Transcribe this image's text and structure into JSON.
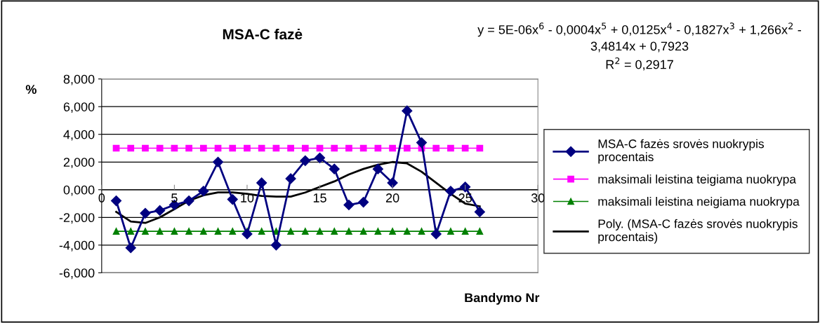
{
  "chart_data": {
    "type": "line",
    "title": "MSA-C fazė",
    "xlabel": "Bandymo Nr",
    "ylabel": "%",
    "annotations": [
      "y = 5E-06x$^{6}$ - 0,0004x$^{5}$ + 0,0125x$^{4}$ - 0,1827x$^{3}$ + 1,266x$^{2}$ -\n3,4814x + 0,7923\nR$^{2}$ = 0,2917"
    ],
    "x": [
      1,
      2,
      3,
      4,
      5,
      6,
      7,
      8,
      9,
      10,
      11,
      12,
      13,
      14,
      15,
      16,
      17,
      18,
      19,
      20,
      21,
      22,
      23,
      24,
      25,
      26
    ],
    "series": [
      {
        "name": "MSA-C fazės srovės nuokrypis procentais",
        "color": "#000080",
        "marker": "diamond",
        "values": [
          -0.8,
          -4.2,
          -1.7,
          -1.5,
          -1.1,
          -0.8,
          -0.1,
          2.0,
          -0.7,
          -3.2,
          0.5,
          -4.0,
          0.8,
          2.1,
          2.3,
          1.5,
          -1.1,
          -0.9,
          1.5,
          0.5,
          5.7,
          3.4,
          -3.2,
          -0.1,
          0.2,
          -1.6
        ]
      },
      {
        "name": "maksimali leistina teigiama nuokrypa",
        "color": "#ff00ff",
        "marker": "square",
        "values": [
          3,
          3,
          3,
          3,
          3,
          3,
          3,
          3,
          3,
          3,
          3,
          3,
          3,
          3,
          3,
          3,
          3,
          3,
          3,
          3,
          3,
          3,
          3,
          3,
          3,
          3
        ]
      },
      {
        "name": "maksimali leistina neigiama nuokrypa",
        "color": "#008000",
        "marker": "triangle",
        "values": [
          -3,
          -3,
          -3,
          -3,
          -3,
          -3,
          -3,
          -3,
          -3,
          -3,
          -3,
          -3,
          -3,
          -3,
          -3,
          -3,
          -3,
          -3,
          -3,
          -3,
          -3,
          -3,
          -3,
          -3,
          -3,
          -3
        ]
      },
      {
        "name": "Poly. (MSA-C fazės srovės nuokrypis procentais)",
        "color": "#000000",
        "marker": "none",
        "values": [
          -1.6,
          -2.3,
          -2.4,
          -2.0,
          -1.4,
          -0.8,
          -0.4,
          -0.2,
          -0.2,
          -0.3,
          -0.45,
          -0.5,
          -0.5,
          -0.2,
          0.2,
          0.6,
          1.1,
          1.5,
          1.8,
          2.0,
          1.9,
          1.3,
          0.5,
          -0.3,
          -1.0,
          -1.2
        ]
      }
    ],
    "xlim": [
      0,
      30
    ],
    "xticks": [
      0,
      5,
      10,
      15,
      20,
      25,
      30
    ],
    "ylim": [
      -6,
      8
    ],
    "yticks": [
      {
        "value": -6,
        "label": "-6,000"
      },
      {
        "value": -4,
        "label": "-4,000"
      },
      {
        "value": -2,
        "label": "-2,000"
      },
      {
        "value": 0,
        "label": "0,000"
      },
      {
        "value": 2,
        "label": "2,000"
      },
      {
        "value": 4,
        "label": "4,000"
      },
      {
        "value": 6,
        "label": "6,000"
      },
      {
        "value": 8,
        "label": "8,000"
      }
    ],
    "grid": "y",
    "legend": "right",
    "line_style": "solid"
  }
}
